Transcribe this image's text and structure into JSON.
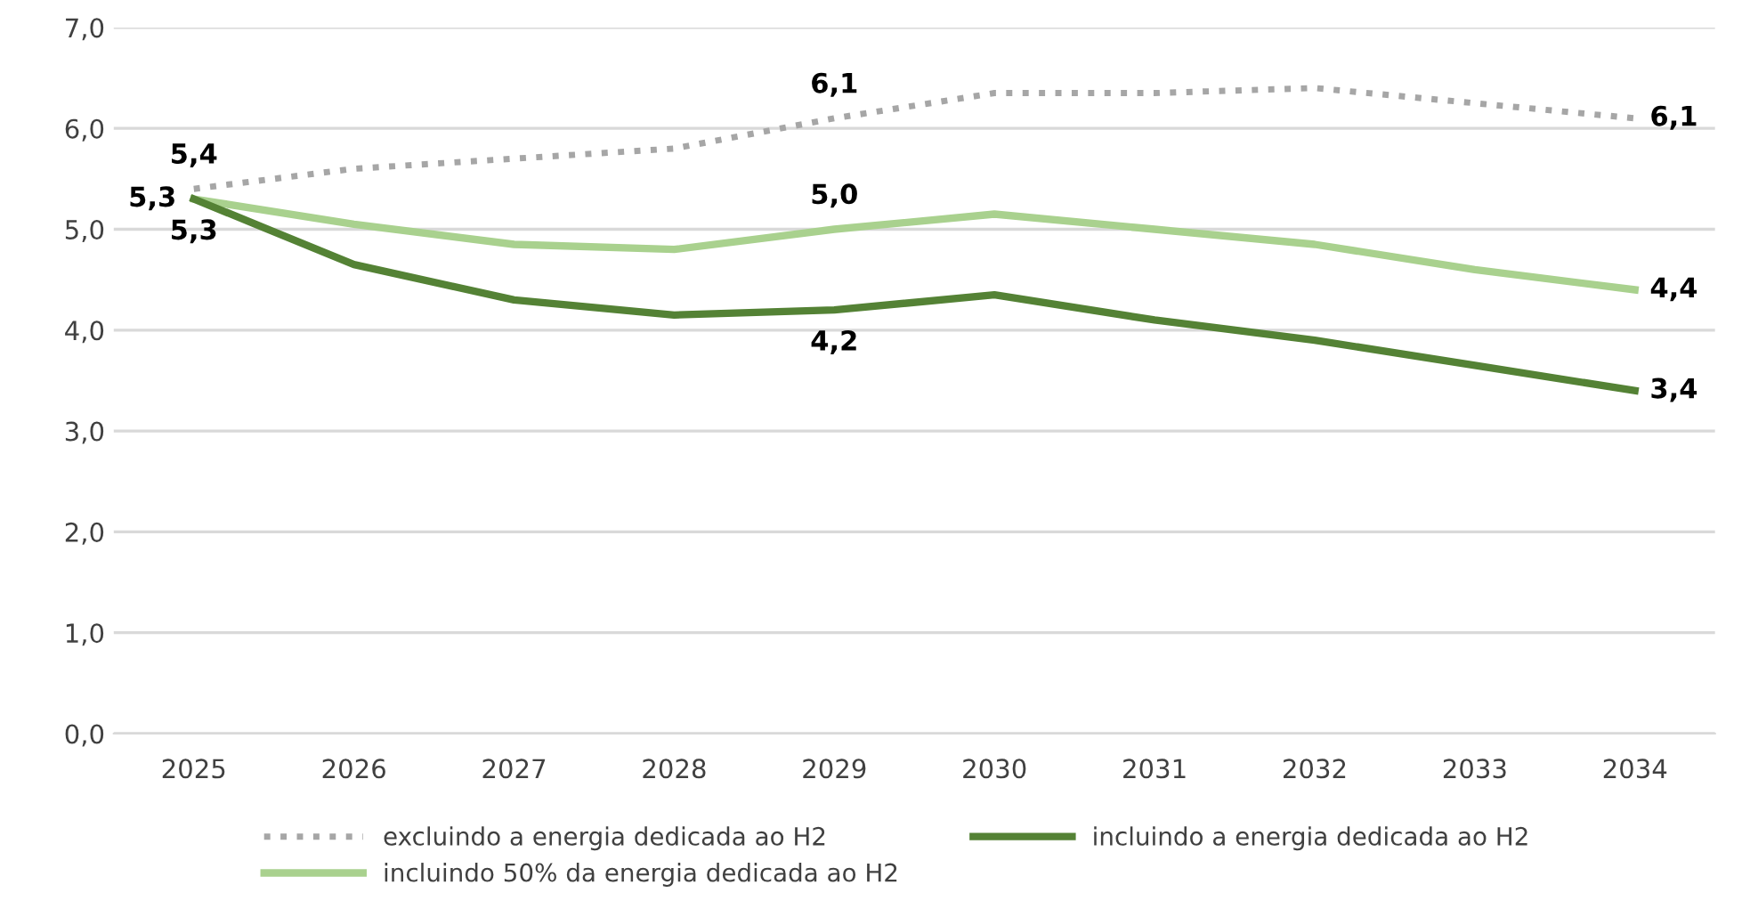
{
  "chart_data": {
    "type": "line",
    "categories": [
      "2025",
      "2026",
      "2027",
      "2028",
      "2029",
      "2030",
      "2031",
      "2032",
      "2033",
      "2034"
    ],
    "series": [
      {
        "name": "excluindo a energia dedicada ao H2",
        "color": "#a6a6a6",
        "line_style": "dotted",
        "values": [
          5.4,
          5.6,
          5.7,
          5.8,
          6.1,
          6.35,
          6.35,
          6.4,
          6.25,
          6.1
        ],
        "value_labels": [
          "5,4",
          null,
          null,
          null,
          "6,1",
          null,
          null,
          null,
          null,
          "6,1"
        ]
      },
      {
        "name": "incluindo 50% da energia dedicada ao H2",
        "color": "#a9d18e",
        "line_style": "solid",
        "values": [
          5.3,
          5.05,
          4.85,
          4.8,
          5.0,
          5.15,
          5.0,
          4.85,
          4.6,
          4.4
        ],
        "value_labels": [
          "5,3",
          null,
          null,
          null,
          "5,0",
          null,
          null,
          null,
          null,
          "4,4"
        ]
      },
      {
        "name": "incluindo a energia dedicada ao H2",
        "color": "#548235",
        "line_style": "solid",
        "values": [
          5.3,
          4.65,
          4.3,
          4.15,
          4.2,
          4.35,
          4.1,
          3.9,
          3.65,
          3.4
        ],
        "value_labels": [
          "5,3",
          null,
          null,
          null,
          "4,2",
          null,
          null,
          null,
          null,
          "3,4"
        ]
      }
    ],
    "ylim": [
      0,
      7
    ],
    "yticks": [
      {
        "value": 0,
        "label": "0,0"
      },
      {
        "value": 1,
        "label": "1,0"
      },
      {
        "value": 2,
        "label": "2,0"
      },
      {
        "value": 3,
        "label": "3,0"
      },
      {
        "value": 4,
        "label": "4,0"
      },
      {
        "value": 5,
        "label": "5,0"
      },
      {
        "value": 6,
        "label": "6,0"
      },
      {
        "value": 7,
        "label": "7,0"
      }
    ],
    "grid": "y",
    "legend": "bottom",
    "marker": "none"
  }
}
